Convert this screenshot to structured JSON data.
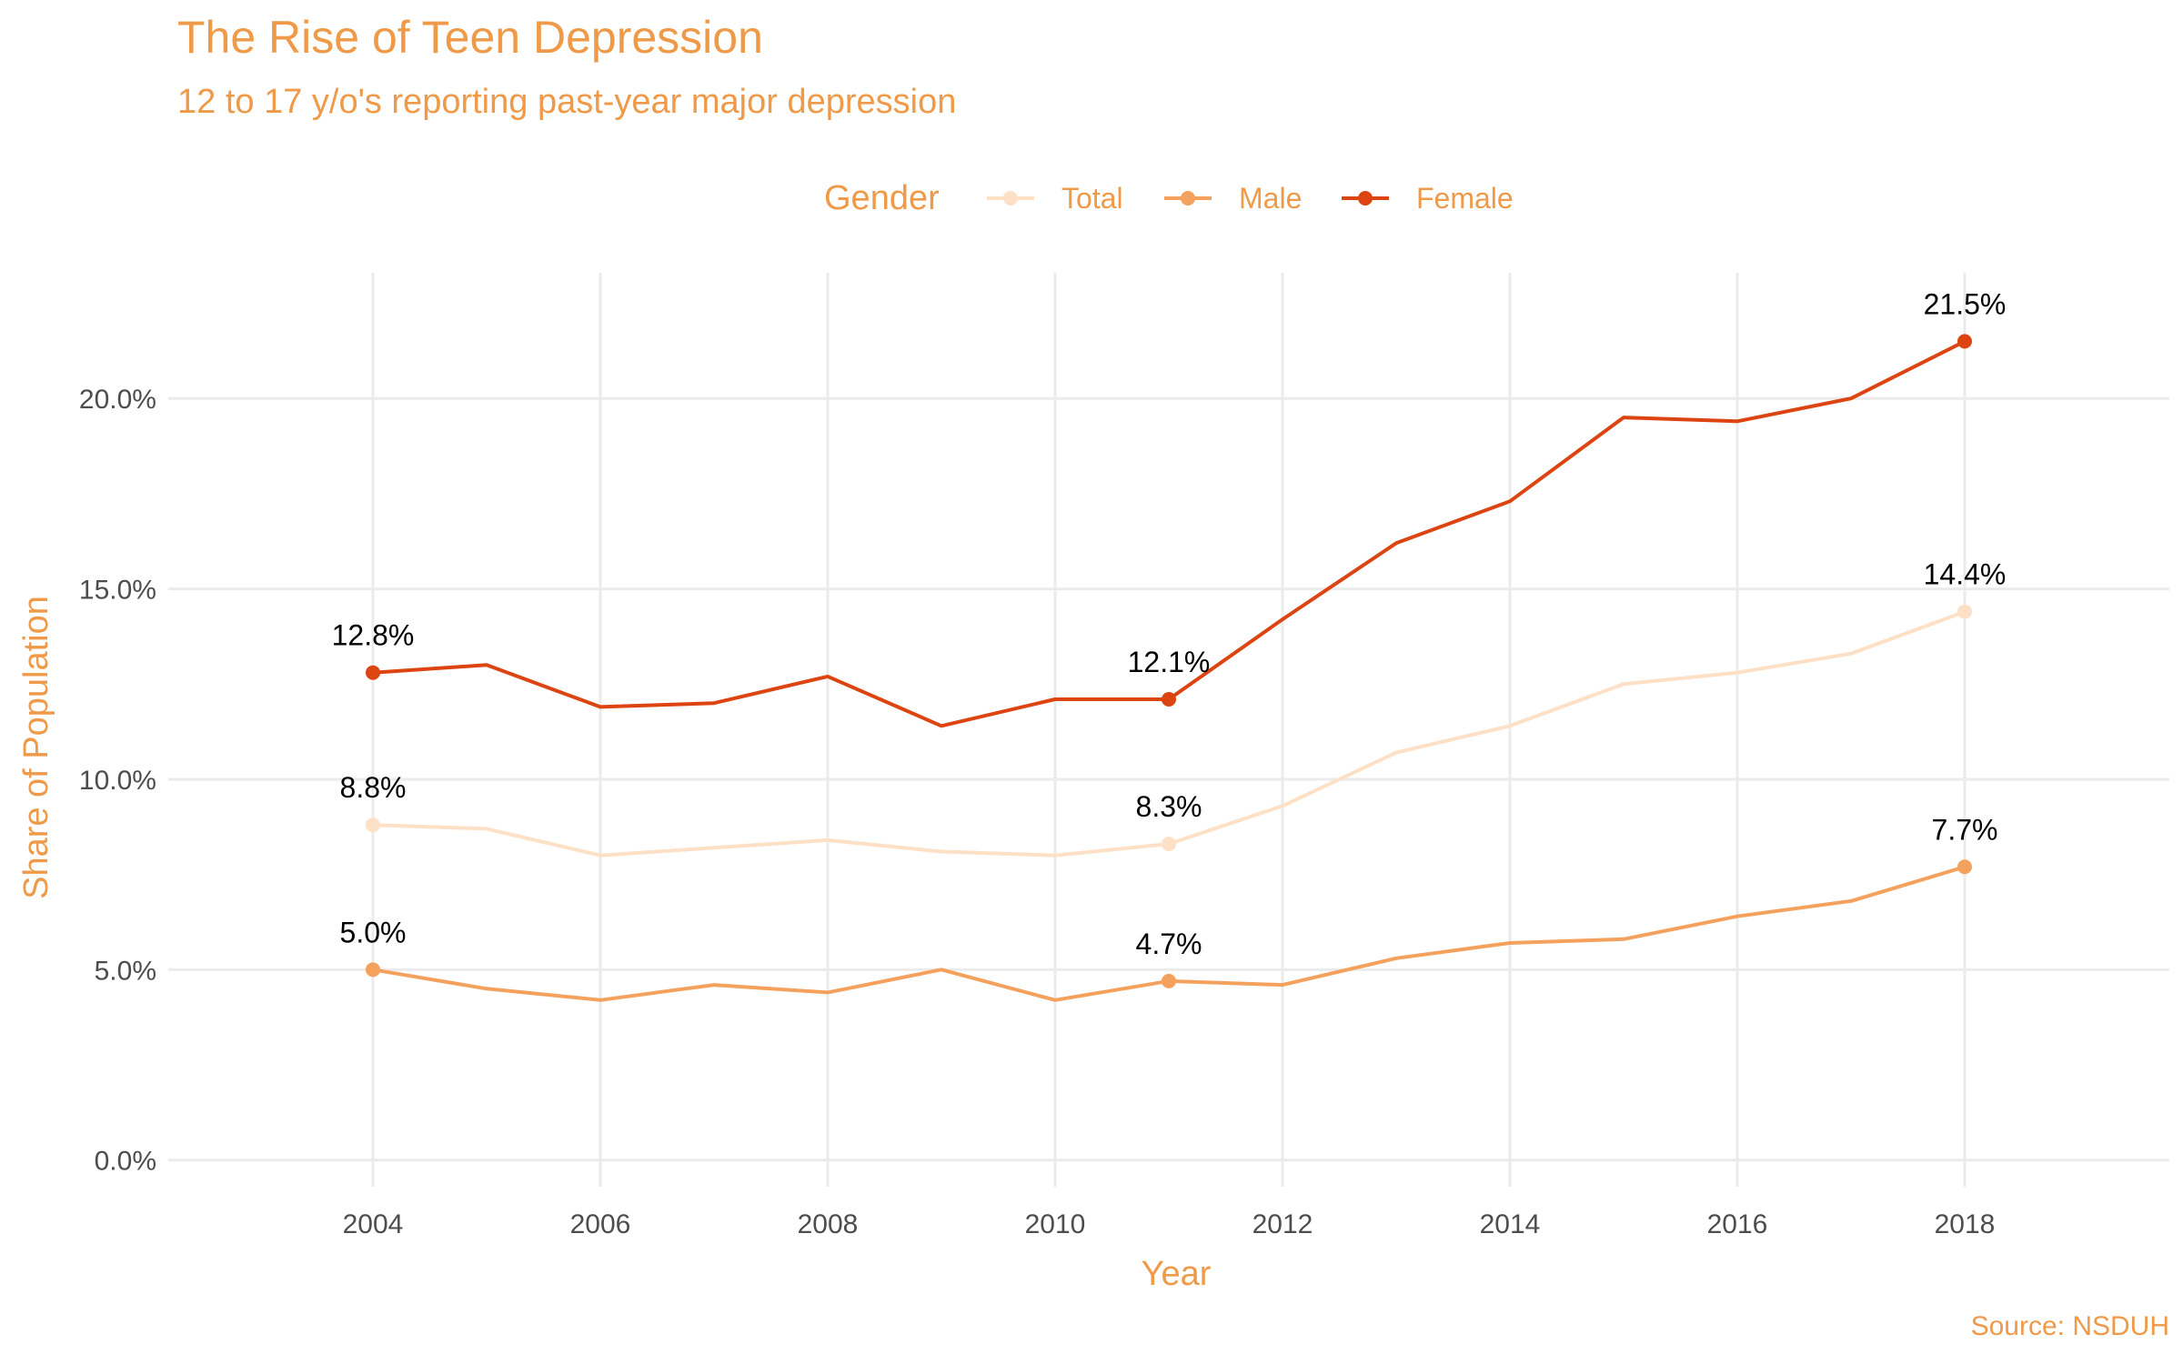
{
  "chart_data": {
    "type": "line",
    "title": "The Rise of Teen Depression",
    "subtitle": "12 to 17 y/o's reporting past-year major depression",
    "xlabel": "Year",
    "ylabel": "Share of Population",
    "caption": "Source: NSDUH",
    "legend_title": "Gender",
    "legend_position": "top",
    "grid": true,
    "xlim": [
      2002.2,
      2019.8
    ],
    "ylim": [
      -0.7,
      23.3
    ],
    "x_ticks": [
      2004,
      2006,
      2008,
      2010,
      2012,
      2014,
      2016,
      2018
    ],
    "y_ticks": [
      0,
      5,
      10,
      15,
      20
    ],
    "y_tick_labels": [
      "0.0%",
      "5.0%",
      "10.0%",
      "15.0%",
      "20.0%"
    ],
    "x": [
      2004,
      2005,
      2006,
      2007,
      2008,
      2009,
      2010,
      2011,
      2012,
      2013,
      2014,
      2015,
      2016,
      2017,
      2018
    ],
    "series": [
      {
        "name": "Total",
        "color": "#FDE0C5",
        "values": [
          8.8,
          8.7,
          8.0,
          8.2,
          8.4,
          8.1,
          8.0,
          8.3,
          9.3,
          10.7,
          11.4,
          12.5,
          12.8,
          13.3,
          14.4
        ],
        "labeled_points": [
          {
            "x": 2004,
            "y": 8.8,
            "label": "8.8%"
          },
          {
            "x": 2011,
            "y": 8.3,
            "label": "8.3%"
          },
          {
            "x": 2018,
            "y": 14.4,
            "label": "14.4%"
          }
        ]
      },
      {
        "name": "Male",
        "color": "#F4A15D",
        "values": [
          5.0,
          4.5,
          4.2,
          4.6,
          4.4,
          5.0,
          4.2,
          4.7,
          4.6,
          5.3,
          5.7,
          5.8,
          6.4,
          6.8,
          7.7
        ],
        "labeled_points": [
          {
            "x": 2004,
            "y": 5.0,
            "label": "5.0%"
          },
          {
            "x": 2011,
            "y": 4.7,
            "label": "4.7%"
          },
          {
            "x": 2018,
            "y": 7.7,
            "label": "7.7%"
          }
        ]
      },
      {
        "name": "Female",
        "color": "#DC4411",
        "values": [
          12.8,
          13.0,
          11.9,
          12.0,
          12.7,
          11.4,
          12.1,
          12.1,
          14.2,
          16.2,
          17.3,
          19.5,
          19.4,
          20.0,
          21.5
        ],
        "labeled_points": [
          {
            "x": 2004,
            "y": 12.8,
            "label": "12.8%"
          },
          {
            "x": 2011,
            "y": 12.1,
            "label": "12.1%"
          },
          {
            "x": 2018,
            "y": 21.5,
            "label": "21.5%"
          }
        ]
      }
    ]
  }
}
